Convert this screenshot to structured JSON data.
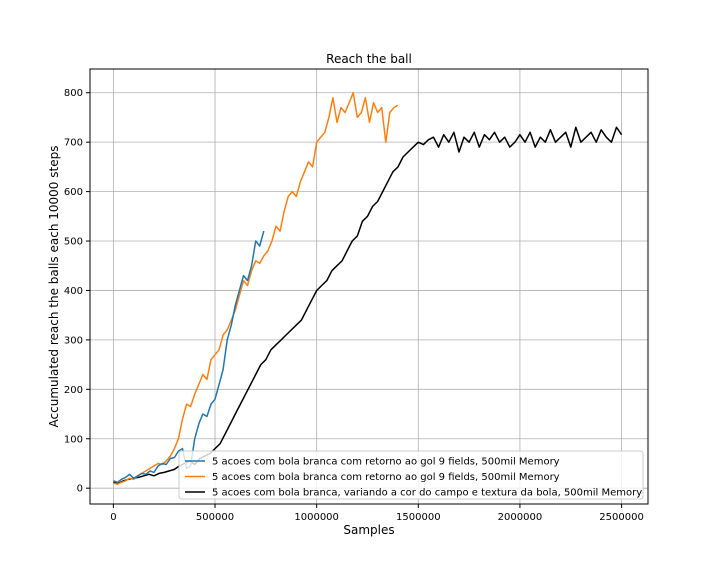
{
  "chart_data": {
    "type": "line",
    "title": "Reach the ball",
    "xlabel": "Samples",
    "ylabel": "Accumulated reach the balls each 10000 steps",
    "xlim": [
      -115000,
      2630000
    ],
    "ylim": [
      -32,
      848
    ],
    "grid": true,
    "legend_position": "lower-right",
    "xticks": [
      0,
      500000,
      1000000,
      1500000,
      2000000,
      2500000
    ],
    "xtick_labels": [
      "0",
      "500000",
      "1000000",
      "1500000",
      "2000000",
      "2500000"
    ],
    "yticks": [
      0,
      100,
      200,
      300,
      400,
      500,
      600,
      700,
      800
    ],
    "ytick_labels": [
      "0",
      "100",
      "200",
      "300",
      "400",
      "500",
      "600",
      "700",
      "800"
    ],
    "series": [
      {
        "name": "5 acoes com bola branca com retorno ao gol 9 fields, 500mil Memory",
        "color": "#1f77b4",
        "x": [
          0,
          20000,
          40000,
          60000,
          80000,
          100000,
          120000,
          140000,
          160000,
          180000,
          200000,
          220000,
          240000,
          260000,
          280000,
          300000,
          320000,
          340000,
          360000,
          380000,
          400000,
          420000,
          440000,
          460000,
          480000,
          500000,
          520000,
          540000,
          560000,
          580000,
          600000,
          620000,
          640000,
          660000,
          680000,
          700000,
          720000,
          740000
        ],
        "y": [
          15,
          12,
          18,
          22,
          28,
          20,
          25,
          30,
          28,
          35,
          32,
          45,
          50,
          48,
          60,
          62,
          75,
          80,
          40,
          45,
          100,
          130,
          150,
          145,
          170,
          180,
          210,
          240,
          300,
          330,
          370,
          400,
          430,
          420,
          450,
          500,
          490,
          520
        ]
      },
      {
        "name": "5 acoes com bola branca com retorno ao gol 9 fields, 500mil Memory",
        "color": "#ff7f0e",
        "x": [
          0,
          20000,
          40000,
          60000,
          80000,
          100000,
          120000,
          140000,
          160000,
          180000,
          200000,
          220000,
          240000,
          260000,
          280000,
          300000,
          320000,
          340000,
          360000,
          380000,
          400000,
          420000,
          440000,
          460000,
          480000,
          500000,
          520000,
          540000,
          560000,
          580000,
          600000,
          620000,
          640000,
          660000,
          680000,
          700000,
          720000,
          740000,
          760000,
          780000,
          800000,
          820000,
          840000,
          860000,
          880000,
          900000,
          920000,
          940000,
          960000,
          980000,
          1000000,
          1020000,
          1040000,
          1060000,
          1080000,
          1100000,
          1120000,
          1140000,
          1160000,
          1180000,
          1200000,
          1220000,
          1240000,
          1260000,
          1280000,
          1300000,
          1320000,
          1340000,
          1360000,
          1380000,
          1400000
        ],
        "y": [
          10,
          8,
          12,
          15,
          20,
          18,
          25,
          30,
          35,
          40,
          45,
          50,
          48,
          55,
          65,
          80,
          100,
          140,
          170,
          165,
          190,
          210,
          230,
          220,
          260,
          270,
          280,
          310,
          320,
          340,
          360,
          390,
          420,
          410,
          440,
          460,
          455,
          470,
          480,
          500,
          530,
          520,
          560,
          590,
          600,
          590,
          620,
          640,
          660,
          650,
          700,
          710,
          720,
          750,
          790,
          740,
          770,
          760,
          780,
          800,
          750,
          760,
          790,
          740,
          780,
          760,
          770,
          700,
          760,
          770,
          775
        ]
      },
      {
        "name": "5 acoes com bola branca, variando a cor do campo e textura da bola, 500mil Memory",
        "color": "#000000",
        "x": [
          0,
          25000,
          50000,
          75000,
          100000,
          125000,
          150000,
          175000,
          200000,
          225000,
          250000,
          275000,
          300000,
          325000,
          350000,
          375000,
          400000,
          425000,
          450000,
          475000,
          500000,
          525000,
          550000,
          575000,
          600000,
          625000,
          650000,
          675000,
          700000,
          725000,
          750000,
          775000,
          800000,
          825000,
          850000,
          875000,
          900000,
          925000,
          950000,
          975000,
          1000000,
          1025000,
          1050000,
          1075000,
          1100000,
          1125000,
          1150000,
          1175000,
          1200000,
          1225000,
          1250000,
          1275000,
          1300000,
          1325000,
          1350000,
          1375000,
          1400000,
          1425000,
          1450000,
          1475000,
          1500000,
          1525000,
          1550000,
          1575000,
          1600000,
          1625000,
          1650000,
          1675000,
          1700000,
          1725000,
          1750000,
          1775000,
          1800000,
          1825000,
          1850000,
          1875000,
          1900000,
          1925000,
          1950000,
          1975000,
          2000000,
          2025000,
          2050000,
          2075000,
          2100000,
          2125000,
          2150000,
          2175000,
          2200000,
          2225000,
          2250000,
          2275000,
          2300000,
          2325000,
          2350000,
          2375000,
          2400000,
          2425000,
          2450000,
          2475000,
          2500000
        ],
        "y": [
          12,
          10,
          15,
          18,
          20,
          22,
          25,
          28,
          25,
          30,
          32,
          35,
          38,
          45,
          50,
          55,
          48,
          60,
          65,
          70,
          80,
          90,
          110,
          130,
          150,
          170,
          190,
          210,
          230,
          250,
          260,
          280,
          290,
          300,
          310,
          320,
          330,
          340,
          360,
          380,
          400,
          410,
          420,
          440,
          450,
          460,
          480,
          500,
          510,
          540,
          550,
          570,
          580,
          600,
          620,
          640,
          650,
          670,
          680,
          690,
          700,
          695,
          705,
          710,
          690,
          715,
          700,
          720,
          680,
          710,
          700,
          720,
          690,
          715,
          705,
          720,
          700,
          710,
          690,
          700,
          715,
          700,
          720,
          690,
          710,
          700,
          725,
          700,
          710,
          720,
          690,
          730,
          700,
          710,
          720,
          700,
          725,
          710,
          700,
          730,
          715
        ]
      }
    ]
  }
}
